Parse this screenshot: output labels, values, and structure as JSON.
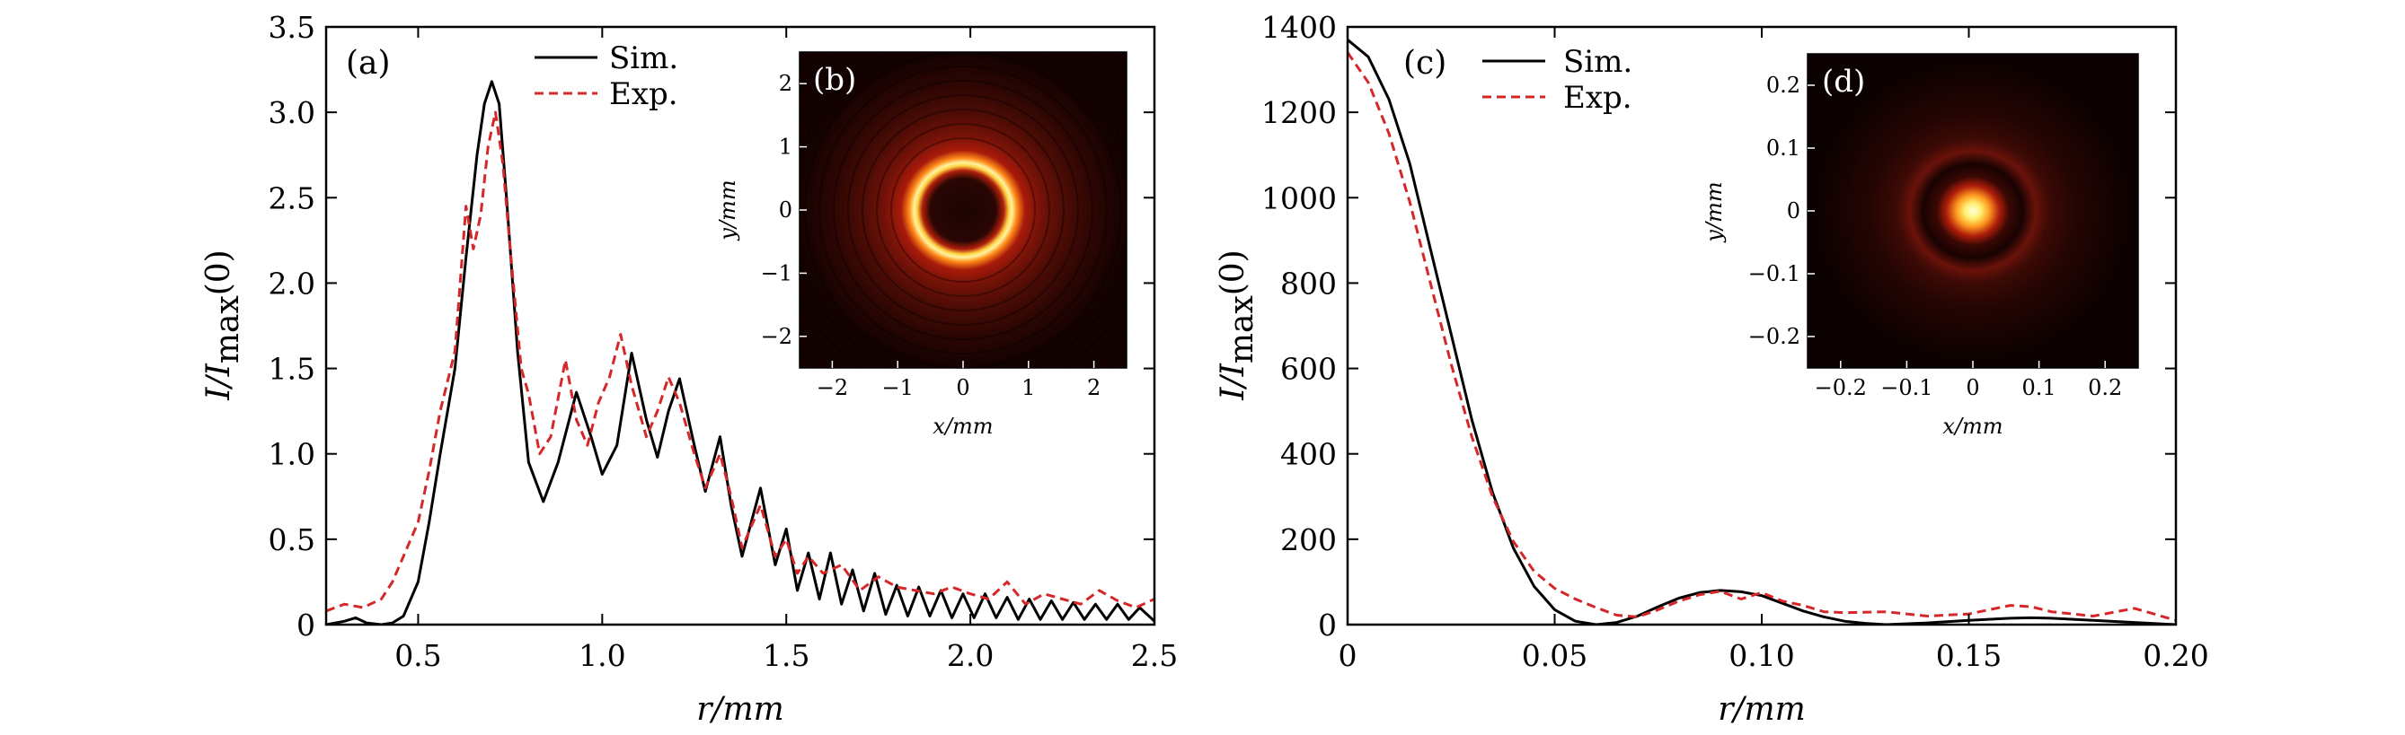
{
  "chart_data": [
    {
      "type": "line",
      "panel": "(a)",
      "xlabel": "r/mm",
      "ylabel": "I/I_max(0)",
      "xlim": [
        0.25,
        2.5
      ],
      "ylim": [
        0,
        3.5
      ],
      "xticks": [
        0.5,
        1.0,
        1.5,
        2.0,
        2.5
      ],
      "xtick_labels": [
        "0.5",
        "1.0",
        "1.5",
        "2.0",
        "2.5"
      ],
      "yticks": [
        0,
        0.5,
        1.0,
        1.5,
        2.0,
        2.5,
        3.0,
        3.5
      ],
      "ytick_labels": [
        "0",
        "0.5",
        "1.0",
        "1.5",
        "2.0",
        "2.5",
        "3.0",
        "3.5"
      ],
      "legend": {
        "placement": "top-center",
        "entries": [
          "Sim.",
          "Exp."
        ]
      },
      "series": [
        {
          "name": "Sim.",
          "color": "#000000",
          "style": "solid",
          "x": [
            0.25,
            0.3,
            0.33,
            0.36,
            0.4,
            0.43,
            0.46,
            0.5,
            0.53,
            0.56,
            0.6,
            0.63,
            0.66,
            0.68,
            0.7,
            0.72,
            0.74,
            0.77,
            0.8,
            0.84,
            0.88,
            0.93,
            0.97,
            1.0,
            1.04,
            1.08,
            1.12,
            1.15,
            1.18,
            1.21,
            1.25,
            1.28,
            1.32,
            1.35,
            1.38,
            1.43,
            1.47,
            1.5,
            1.53,
            1.56,
            1.59,
            1.62,
            1.65,
            1.68,
            1.71,
            1.74,
            1.77,
            1.8,
            1.83,
            1.86,
            1.89,
            1.92,
            1.95,
            1.98,
            2.01,
            2.04,
            2.07,
            2.1,
            2.13,
            2.16,
            2.19,
            2.22,
            2.25,
            2.28,
            2.31,
            2.34,
            2.37,
            2.4,
            2.43,
            2.46,
            2.5
          ],
          "y": [
            0.0,
            0.02,
            0.04,
            0.01,
            0.0,
            0.01,
            0.05,
            0.25,
            0.6,
            1.0,
            1.5,
            2.15,
            2.75,
            3.05,
            3.18,
            3.05,
            2.5,
            1.6,
            0.95,
            0.72,
            0.95,
            1.36,
            1.1,
            0.88,
            1.05,
            1.59,
            1.2,
            0.98,
            1.25,
            1.44,
            1.05,
            0.78,
            1.1,
            0.7,
            0.4,
            0.8,
            0.35,
            0.56,
            0.2,
            0.42,
            0.15,
            0.42,
            0.12,
            0.32,
            0.08,
            0.3,
            0.06,
            0.23,
            0.05,
            0.22,
            0.05,
            0.2,
            0.04,
            0.18,
            0.04,
            0.18,
            0.04,
            0.16,
            0.03,
            0.15,
            0.03,
            0.14,
            0.03,
            0.13,
            0.03,
            0.12,
            0.03,
            0.12,
            0.03,
            0.1,
            0.02
          ]
        },
        {
          "name": "Exp.",
          "color": "#d62728",
          "style": "dashed",
          "x": [
            0.25,
            0.3,
            0.35,
            0.4,
            0.43,
            0.46,
            0.5,
            0.53,
            0.56,
            0.6,
            0.63,
            0.65,
            0.67,
            0.69,
            0.71,
            0.73,
            0.75,
            0.78,
            0.8,
            0.83,
            0.86,
            0.9,
            0.93,
            0.96,
            0.99,
            1.02,
            1.05,
            1.08,
            1.12,
            1.15,
            1.18,
            1.21,
            1.25,
            1.28,
            1.32,
            1.35,
            1.38,
            1.43,
            1.47,
            1.5,
            1.53,
            1.56,
            1.6,
            1.65,
            1.7,
            1.75,
            1.8,
            1.85,
            1.9,
            1.95,
            2.0,
            2.05,
            2.1,
            2.15,
            2.2,
            2.25,
            2.3,
            2.35,
            2.4,
            2.45,
            2.5
          ],
          "y": [
            0.08,
            0.12,
            0.1,
            0.15,
            0.25,
            0.4,
            0.6,
            0.9,
            1.25,
            1.6,
            2.45,
            2.2,
            2.4,
            2.8,
            3.0,
            2.7,
            2.2,
            1.5,
            1.35,
            1.0,
            1.1,
            1.55,
            1.2,
            1.05,
            1.3,
            1.45,
            1.7,
            1.4,
            1.1,
            1.25,
            1.45,
            1.3,
            1.0,
            0.8,
            1.0,
            0.75,
            0.45,
            0.7,
            0.4,
            0.5,
            0.3,
            0.4,
            0.3,
            0.35,
            0.2,
            0.28,
            0.22,
            0.2,
            0.18,
            0.22,
            0.18,
            0.15,
            0.25,
            0.12,
            0.18,
            0.15,
            0.12,
            0.2,
            0.14,
            0.1,
            0.15
          ]
        }
      ],
      "inset": {
        "panel": "(b)",
        "type": "heatmap",
        "pattern": "bright ring with dark center",
        "xlabel": "x/mm",
        "ylabel": "y/mm",
        "xlim": [
          -2.5,
          2.5
        ],
        "ylim": [
          -2.5,
          2.5
        ],
        "xticks": [
          -2,
          -1,
          0,
          1,
          2
        ],
        "xtick_labels": [
          "−2",
          "−1",
          "0",
          "1",
          "2"
        ],
        "yticks": [
          -2,
          -1,
          0,
          1,
          2
        ],
        "ytick_labels": [
          "−2",
          "−1",
          "0",
          "1",
          "2"
        ],
        "ring_radius_mm": 0.7
      }
    },
    {
      "type": "line",
      "panel": "(c)",
      "xlabel": "r/mm",
      "ylabel": "I/I_max(0)",
      "xlim": [
        0,
        0.2
      ],
      "ylim": [
        0,
        1400
      ],
      "xticks": [
        0,
        0.05,
        0.1,
        0.15,
        0.2
      ],
      "xtick_labels": [
        "0",
        "0.05",
        "0.10",
        "0.15",
        "0.20"
      ],
      "yticks": [
        0,
        200,
        400,
        600,
        800,
        1000,
        1200,
        1400
      ],
      "ytick_labels": [
        "0",
        "200",
        "400",
        "600",
        "800",
        "1000",
        "1200",
        "1400"
      ],
      "legend": {
        "placement": "top-left",
        "entries": [
          "Sim.",
          "Exp."
        ]
      },
      "series": [
        {
          "name": "Sim.",
          "color": "#000000",
          "style": "solid",
          "x": [
            0,
            0.005,
            0.01,
            0.015,
            0.02,
            0.025,
            0.03,
            0.035,
            0.04,
            0.045,
            0.05,
            0.055,
            0.06,
            0.065,
            0.07,
            0.075,
            0.08,
            0.085,
            0.09,
            0.095,
            0.1,
            0.105,
            0.11,
            0.115,
            0.12,
            0.125,
            0.13,
            0.14,
            0.15,
            0.16,
            0.165,
            0.17,
            0.18,
            0.19,
            0.2
          ],
          "y": [
            1370,
            1330,
            1230,
            1080,
            880,
            680,
            480,
            310,
            180,
            90,
            35,
            8,
            0,
            5,
            20,
            42,
            62,
            75,
            80,
            77,
            68,
            50,
            32,
            18,
            8,
            3,
            0,
            4,
            10,
            15,
            16,
            15,
            10,
            5,
            0
          ]
        },
        {
          "name": "Exp.",
          "color": "#d62728",
          "style": "dashed",
          "x": [
            0,
            0.005,
            0.01,
            0.015,
            0.02,
            0.025,
            0.03,
            0.035,
            0.04,
            0.045,
            0.05,
            0.055,
            0.06,
            0.065,
            0.07,
            0.075,
            0.08,
            0.085,
            0.09,
            0.095,
            0.1,
            0.105,
            0.11,
            0.115,
            0.12,
            0.13,
            0.14,
            0.15,
            0.16,
            0.165,
            0.17,
            0.18,
            0.19,
            0.2
          ],
          "y": [
            1340,
            1270,
            1150,
            990,
            800,
            610,
            440,
            300,
            195,
            125,
            85,
            60,
            40,
            22,
            18,
            35,
            55,
            70,
            78,
            60,
            75,
            55,
            45,
            30,
            28,
            30,
            20,
            25,
            45,
            42,
            30,
            20,
            38,
            10
          ]
        }
      ],
      "inset": {
        "panel": "(d)",
        "type": "heatmap",
        "pattern": "bright central spot with faint ring",
        "xlabel": "x/mm",
        "ylabel": "y/mm",
        "xlim": [
          -0.25,
          0.25
        ],
        "ylim": [
          -0.25,
          0.25
        ],
        "xticks": [
          -0.2,
          -0.1,
          0,
          0.1,
          0.2
        ],
        "xtick_labels": [
          "−0.2",
          "−0.1",
          "0",
          "0.1",
          "0.2"
        ],
        "yticks": [
          -0.2,
          -0.1,
          0,
          0.1,
          0.2
        ],
        "ytick_labels": [
          "−0.2",
          "−0.1",
          "0",
          "0.1",
          "0.2"
        ],
        "spot_radius_mm": 0.03
      }
    }
  ]
}
